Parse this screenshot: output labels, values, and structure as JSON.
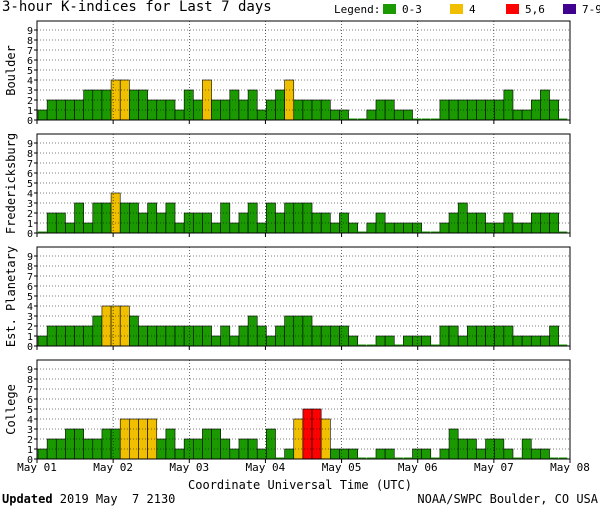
{
  "header": {
    "title": "3-hour K-indices for Last 7 days",
    "legend_label": "Legend:",
    "legend": [
      {
        "label": "0-3",
        "color": "#1a9a00"
      },
      {
        "label": "4",
        "color": "#f0c000"
      },
      {
        "label": "5,6",
        "color": "#ff0000"
      },
      {
        "label": "7-9",
        "color": "#400090"
      }
    ]
  },
  "chart_data": [
    {
      "type": "bar",
      "ylabel": "Boulder",
      "ylim": [
        0,
        9
      ],
      "yticks": [
        "0",
        "1",
        "2",
        "3",
        "4",
        "5",
        "6",
        "7",
        "8",
        "9"
      ],
      "xticks": [
        "May 01",
        "May 02",
        "May 03",
        "May 04",
        "May 05",
        "May 06",
        "May 07",
        "May 08"
      ],
      "values": [
        1,
        2,
        2,
        2,
        2,
        3,
        3,
        3,
        4,
        4,
        3,
        3,
        2,
        2,
        2,
        1,
        3,
        2,
        4,
        2,
        2,
        3,
        2,
        3,
        1,
        2,
        3,
        4,
        2,
        2,
        2,
        2,
        1,
        1,
        0,
        0,
        1,
        2,
        2,
        1,
        1,
        0,
        0,
        0,
        2,
        2,
        2,
        2,
        2,
        2,
        2,
        3,
        1,
        1,
        2,
        3,
        2,
        0
      ]
    },
    {
      "type": "bar",
      "ylabel": "Fredericksburg",
      "ylim": [
        0,
        9
      ],
      "yticks": [
        "0",
        "1",
        "2",
        "3",
        "4",
        "5",
        "6",
        "7",
        "8",
        "9"
      ],
      "xticks": [
        "May 01",
        "May 02",
        "May 03",
        "May 04",
        "May 05",
        "May 06",
        "May 07",
        "May 08"
      ],
      "values": [
        0,
        2,
        2,
        1,
        3,
        1,
        3,
        3,
        4,
        3,
        3,
        2,
        3,
        2,
        3,
        1,
        2,
        2,
        2,
        1,
        3,
        1,
        2,
        3,
        1,
        3,
        2,
        3,
        3,
        3,
        2,
        2,
        1,
        2,
        1,
        0,
        1,
        2,
        1,
        1,
        1,
        1,
        0,
        0,
        1,
        2,
        3,
        2,
        2,
        1,
        1,
        2,
        1,
        1,
        2,
        2,
        2,
        0
      ]
    },
    {
      "type": "bar",
      "ylabel": "Est. Planetary",
      "ylim": [
        0,
        9
      ],
      "yticks": [
        "0",
        "1",
        "2",
        "3",
        "4",
        "5",
        "6",
        "7",
        "8",
        "9"
      ],
      "xticks": [
        "May 01",
        "May 02",
        "May 03",
        "May 04",
        "May 05",
        "May 06",
        "May 07",
        "May 08"
      ],
      "values": [
        1,
        2,
        2,
        2,
        2,
        2,
        3,
        4,
        4,
        4,
        3,
        2,
        2,
        2,
        2,
        2,
        2,
        2,
        2,
        1,
        2,
        1,
        2,
        3,
        2,
        1,
        2,
        3,
        3,
        3,
        2,
        2,
        2,
        2,
        1,
        0,
        0,
        1,
        1,
        0,
        1,
        1,
        1,
        0,
        2,
        2,
        1,
        2,
        2,
        2,
        2,
        2,
        1,
        1,
        1,
        1,
        2,
        0
      ]
    },
    {
      "type": "bar",
      "ylabel": "College",
      "ylim": [
        0,
        9
      ],
      "yticks": [
        "0",
        "1",
        "2",
        "3",
        "4",
        "5",
        "6",
        "7",
        "8",
        "9"
      ],
      "xticks": [
        "May 01",
        "May 02",
        "May 03",
        "May 04",
        "May 05",
        "May 06",
        "May 07",
        "May 08"
      ],
      "values": [
        1,
        2,
        2,
        3,
        3,
        2,
        2,
        3,
        3,
        4,
        4,
        4,
        4,
        2,
        3,
        1,
        2,
        2,
        3,
        3,
        2,
        1,
        2,
        2,
        1,
        3,
        0,
        1,
        4,
        5,
        5,
        4,
        1,
        1,
        1,
        0,
        0,
        1,
        1,
        0,
        0,
        1,
        1,
        0,
        1,
        3,
        2,
        2,
        1,
        2,
        2,
        1,
        0,
        2,
        1,
        1,
        0,
        0
      ]
    }
  ],
  "footer": {
    "xtitle": "Coordinate Universal Time (UTC)",
    "updated_label": "Updated",
    "updated_value": " 2019 May  7 2130",
    "credit": "NOAA/SWPC Boulder, CO USA"
  }
}
